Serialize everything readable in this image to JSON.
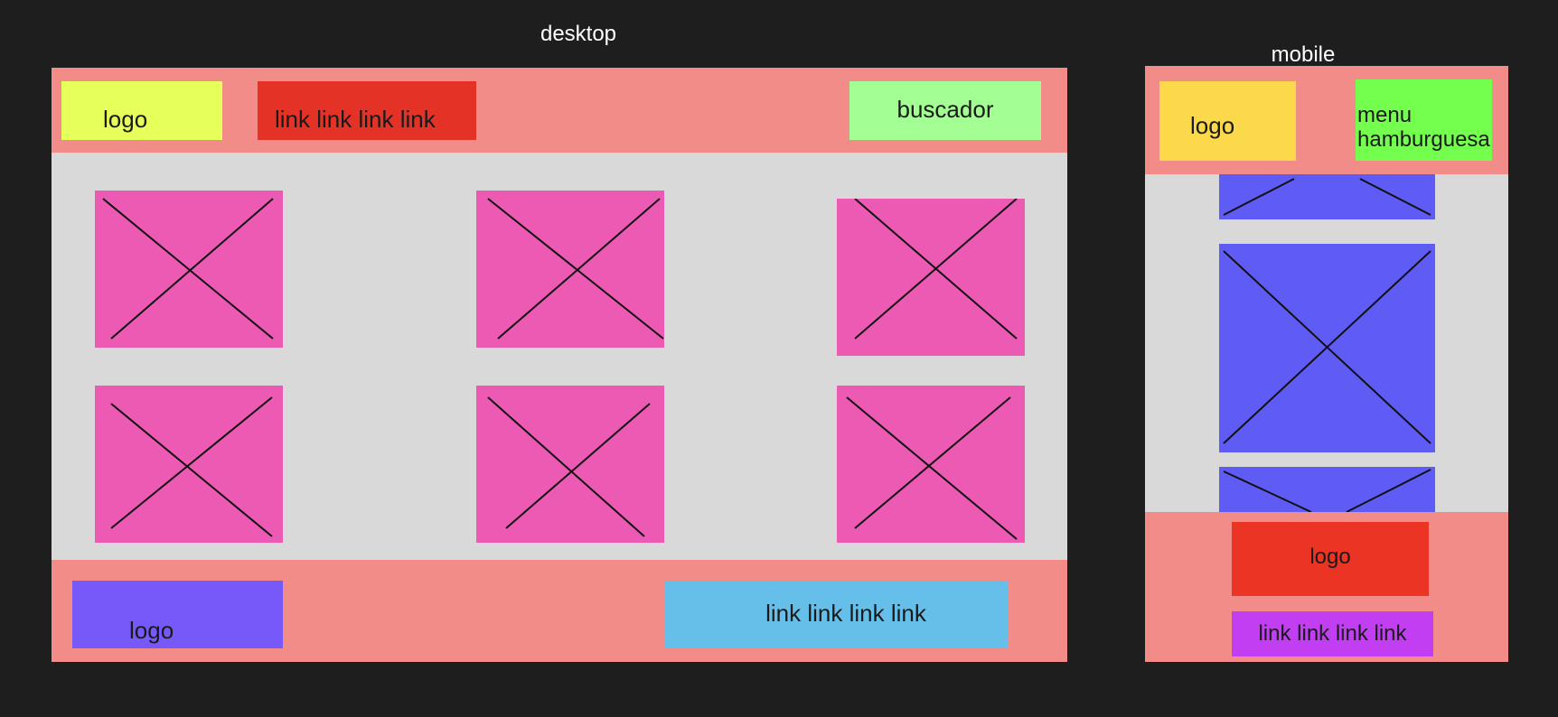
{
  "colors": {
    "canvas": "#1e1e1e",
    "frame_bar": "#f28c88",
    "content_bg": "#d9d9d9",
    "desktop_logo": "#e6ff5a",
    "desktop_nav": "#e53226",
    "desktop_search": "#a3ff93",
    "desktop_card": "#ec5ab4",
    "desktop_footer_logo": "#7759f9",
    "desktop_footer_links": "#66bfe8",
    "mobile_logo": "#fcd94b",
    "mobile_menu": "#74ff4f",
    "mobile_card": "#5f5cf6",
    "mobile_footer_logo": "#ec3424",
    "mobile_footer_links": "#c13ef2"
  },
  "desktop": {
    "title": "desktop",
    "header": {
      "logo": "logo",
      "nav": "link link link link",
      "search": "buscador"
    },
    "footer": {
      "logo": "logo",
      "links": "link link link link"
    }
  },
  "mobile": {
    "title": "mobile",
    "header": {
      "logo": "logo",
      "menu_line1": "menu",
      "menu_line2": "hamburguesa"
    },
    "footer": {
      "logo": "logo",
      "links": "link link link link"
    }
  }
}
